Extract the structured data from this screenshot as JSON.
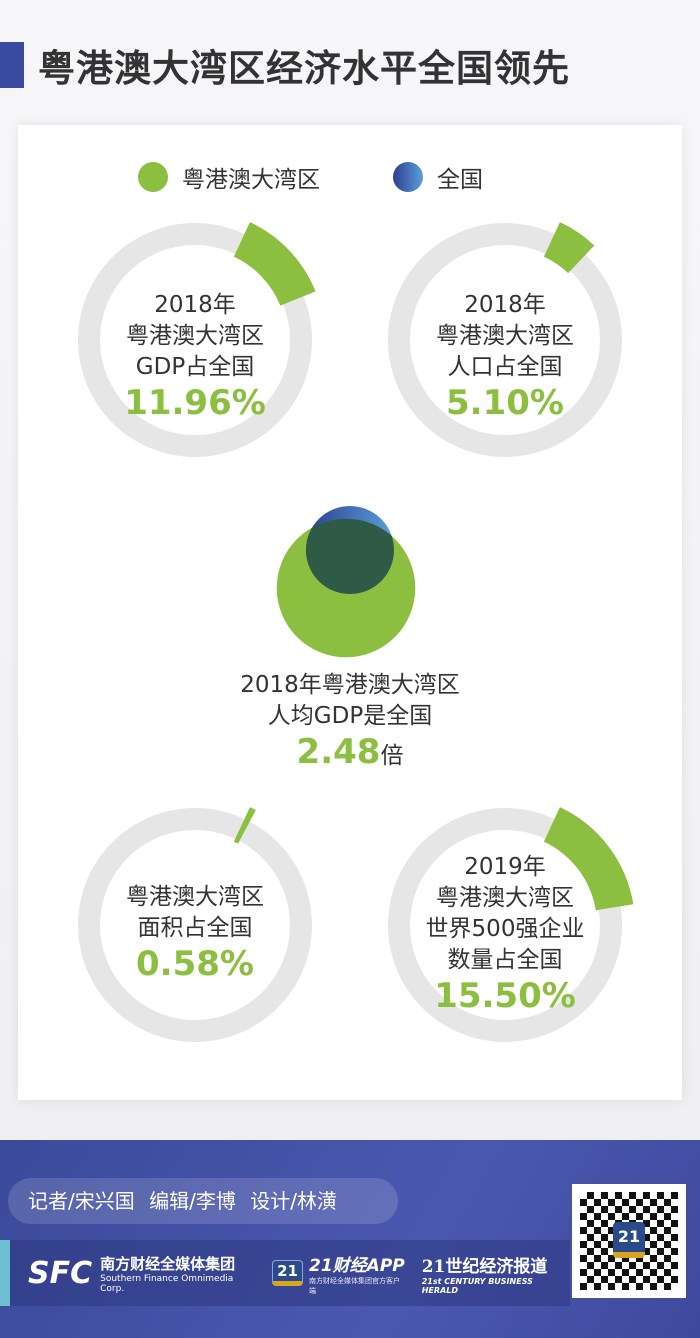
{
  "title": "粤港澳大湾区经济水平全国领先",
  "legend": [
    {
      "label": "粤港澳大湾区",
      "color": "#8cbf3f"
    },
    {
      "label": "全国",
      "color": "#3a4aa0"
    }
  ],
  "chart_data": [
    {
      "type": "pie",
      "subtype": "donut",
      "lines": [
        "2018年",
        "粤港澳大湾区",
        "GDP占全国"
      ],
      "value_label": "11.96%",
      "value": 11.96
    },
    {
      "type": "pie",
      "subtype": "donut",
      "lines": [
        "2018年",
        "粤港澳大湾区",
        "人口占全国"
      ],
      "value_label": "5.10%",
      "value": 5.1
    },
    {
      "type": "bubble",
      "lines": [
        "2018年粤港澳大湾区",
        "人均GDP是全国"
      ],
      "value_label": "2.48",
      "unit": "倍",
      "value": 2.48
    },
    {
      "type": "pie",
      "subtype": "donut",
      "lines": [
        "粤港澳大湾区",
        "面积占全国"
      ],
      "value_label": "0.58%",
      "value": 0.58
    },
    {
      "type": "pie",
      "subtype": "donut",
      "lines": [
        "2019年",
        "粤港澳大湾区",
        "世界500强企业",
        "数量占全国"
      ],
      "value_label": "15.50%",
      "value": 15.5
    }
  ],
  "footer": {
    "credits": "记者/宋兴国 编辑/李博 设计/林潢",
    "logo1": "SFC",
    "logo1_cn": "南方财经全媒体集团",
    "logo1_en": "Southern Finance Omnimedia Corp.",
    "logo2_badge": "21",
    "logo2": "21财经APP",
    "logo2_sub": "南方财经全媒体集团官方客户端",
    "logo3": "21世纪经济报道",
    "logo3_en": "21st CENTURY BUSINESS HERALD",
    "qr_badge": "21"
  }
}
